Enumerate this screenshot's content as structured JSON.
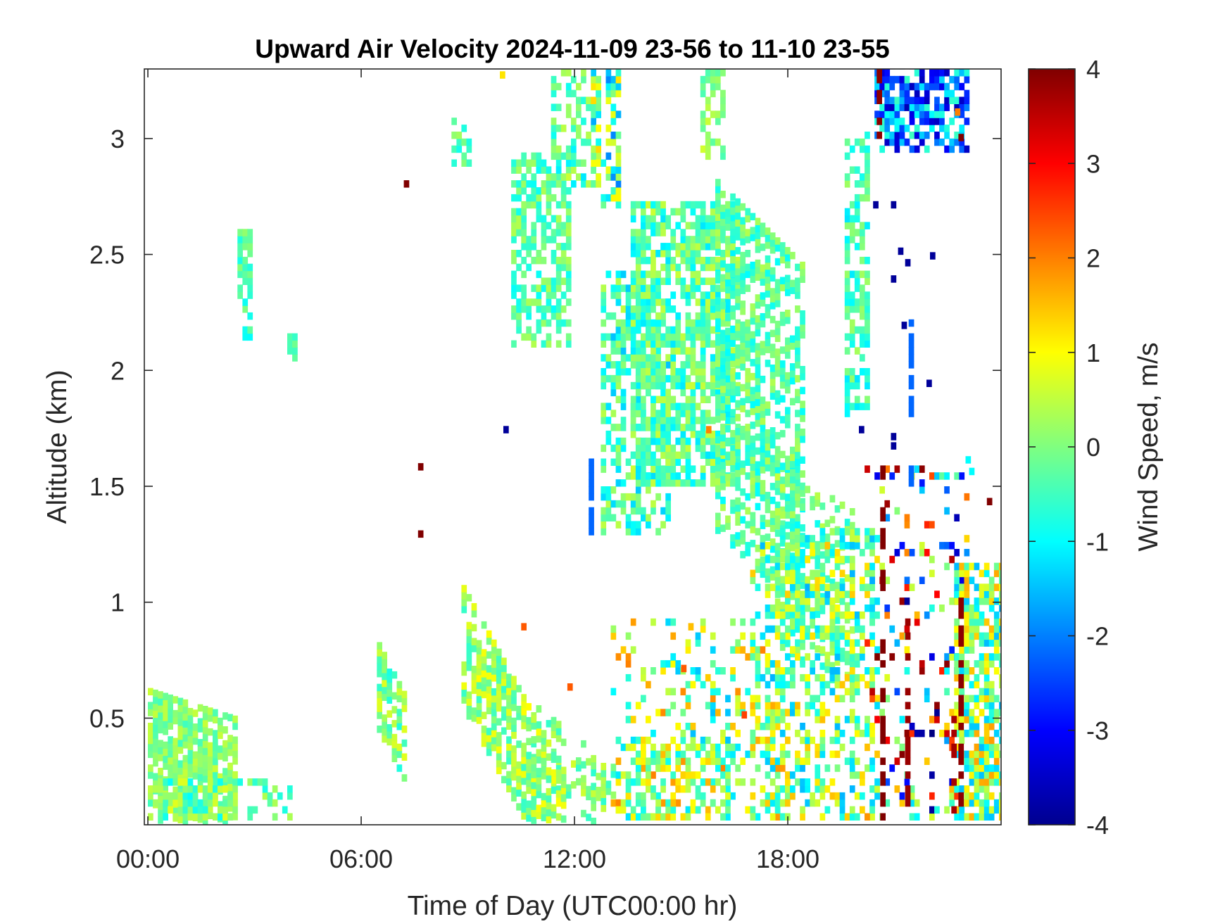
{
  "chart_data": {
    "type": "heatmap",
    "title": "Upward Air Velocity 2024-11-09 23-56 to 11-10 23-55",
    "xlabel": "Time of Day (UTC00:00 hr)",
    "ylabel": "Altitude (km)",
    "x_ticks": [
      {
        "value": 0,
        "label": "00:00"
      },
      {
        "value": 6,
        "label": "06:00"
      },
      {
        "value": 12,
        "label": "12:00"
      },
      {
        "value": 18,
        "label": "18:00"
      }
    ],
    "xlim": [
      -0.1,
      24
    ],
    "y_ticks": [
      {
        "value": 0.5,
        "label": "0.5"
      },
      {
        "value": 1,
        "label": "1"
      },
      {
        "value": 1.5,
        "label": "1.5"
      },
      {
        "value": 2,
        "label": "2"
      },
      {
        "value": 2.5,
        "label": "2.5"
      },
      {
        "value": 3,
        "label": "3"
      }
    ],
    "ylim": [
      0.04,
      3.3
    ],
    "colorbar": {
      "label": "Wind Speed, m/s",
      "colormap": "jet",
      "range": [
        -4,
        4
      ],
      "ticks": [
        "4",
        "3",
        "2",
        "1",
        "0",
        "-1",
        "-2",
        "-3",
        "-4"
      ]
    },
    "grid": false,
    "cell_size": {
      "time_hr": 0.14,
      "alt_km": 0.03
    },
    "regions": [
      {
        "t": [
          0.0,
          2.4
        ],
        "z": [
          0.05,
          0.6
        ],
        "v": [
          -0.5,
          0.6
        ],
        "density": 0.75,
        "slope": -0.05
      },
      {
        "t": [
          0.1,
          2.3
        ],
        "z": [
          0.05,
          0.22
        ],
        "v": [
          -1.0,
          0.9
        ],
        "density": 0.6,
        "slope": 0
      },
      {
        "t": [
          2.5,
          3.9
        ],
        "z": [
          0.05,
          0.2
        ],
        "v": [
          -1.2,
          0.5
        ],
        "density": 0.35,
        "slope": 0
      },
      {
        "t": [
          2.5,
          2.8
        ],
        "z": [
          2.3,
          2.58
        ],
        "v": [
          -0.9,
          0.2
        ],
        "density": 0.8,
        "slope": 0
      },
      {
        "t": [
          2.6,
          2.8
        ],
        "z": [
          2.1,
          2.3
        ],
        "v": [
          -1.0,
          0.0
        ],
        "density": 0.4,
        "slope": 0
      },
      {
        "t": [
          3.9,
          4.1
        ],
        "z": [
          2.05,
          2.13
        ],
        "v": [
          -0.6,
          0.0
        ],
        "density": 0.9,
        "slope": 0
      },
      {
        "t": [
          6.4,
          7.2
        ],
        "z": [
          0.45,
          0.8
        ],
        "v": [
          -0.8,
          0.8
        ],
        "density": 0.7,
        "slope": -0.3
      },
      {
        "t": [
          8.8,
          11.6
        ],
        "z": [
          0.55,
          1.05
        ],
        "v": [
          -0.6,
          1.0
        ],
        "density": 0.75,
        "slope": -0.28
      },
      {
        "t": [
          10.8,
          13.0
        ],
        "z": [
          0.25,
          0.55
        ],
        "v": [
          -0.7,
          0.7
        ],
        "density": 0.4,
        "slope": -0.12
      },
      {
        "t": [
          8.5,
          8.9
        ],
        "z": [
          2.85,
          3.05
        ],
        "v": [
          -0.9,
          0.3
        ],
        "density": 0.5,
        "slope": 0
      },
      {
        "t": [
          10.2,
          11.8
        ],
        "z": [
          2.1,
          2.9
        ],
        "v": [
          -1.0,
          0.4
        ],
        "density": 0.6,
        "slope": 0
      },
      {
        "t": [
          11.3,
          12.6
        ],
        "z": [
          2.8,
          3.28
        ],
        "v": [
          -1.2,
          0.6
        ],
        "density": 0.45,
        "slope": 0
      },
      {
        "t": [
          12.4,
          13.2
        ],
        "z": [
          2.7,
          3.3
        ],
        "v": [
          -2.0,
          1.3
        ],
        "density": 0.5,
        "slope": 0
      },
      {
        "t": [
          12.7,
          14.5
        ],
        "z": [
          1.3,
          2.4
        ],
        "v": [
          -1.5,
          0.5
        ],
        "density": 0.55,
        "slope": 0
      },
      {
        "t": [
          13.6,
          16.5
        ],
        "z": [
          1.5,
          2.7
        ],
        "v": [
          -1.2,
          0.6
        ],
        "density": 0.7,
        "slope": 0
      },
      {
        "t": [
          15.6,
          16.1
        ],
        "z": [
          2.9,
          3.3
        ],
        "v": [
          -0.5,
          0.7
        ],
        "density": 0.6,
        "slope": 0
      },
      {
        "t": [
          16.0,
          18.3
        ],
        "z": [
          1.3,
          2.8
        ],
        "v": [
          -1.0,
          0.4
        ],
        "density": 0.6,
        "slope": -0.15
      },
      {
        "t": [
          17.6,
          19.7
        ],
        "z": [
          0.8,
          1.6
        ],
        "v": [
          -0.9,
          0.6
        ],
        "density": 0.45,
        "slope": -0.1
      },
      {
        "t": [
          13.0,
          18.0
        ],
        "z": [
          0.05,
          0.9
        ],
        "v": [
          -1.5,
          2.0
        ],
        "density": 0.22,
        "slope": 0
      },
      {
        "t": [
          13.2,
          16.2
        ],
        "z": [
          0.05,
          0.35
        ],
        "v": [
          -1.0,
          1.6
        ],
        "density": 0.45,
        "slope": 0
      },
      {
        "t": [
          17.0,
          20.4
        ],
        "z": [
          0.05,
          1.3
        ],
        "v": [
          -1.6,
          1.5
        ],
        "density": 0.4,
        "slope": 0
      },
      {
        "t": [
          19.6,
          20.2
        ],
        "z": [
          1.8,
          3.0
        ],
        "v": [
          -1.2,
          0.3
        ],
        "density": 0.55,
        "slope": 0
      },
      {
        "t": [
          20.4,
          22.9
        ],
        "z": [
          2.95,
          3.3
        ],
        "v": [
          -3.6,
          -0.5
        ],
        "density": 0.65,
        "slope": 0
      },
      {
        "t": [
          20.2,
          22.9
        ],
        "z": [
          0.05,
          1.55
        ],
        "v": [
          -4.0,
          4.0
        ],
        "density": 0.16,
        "slope": 0
      },
      {
        "t": [
          22.7,
          24.0
        ],
        "z": [
          0.05,
          1.15
        ],
        "v": [
          -1.6,
          1.8
        ],
        "density": 0.7,
        "slope": 0
      }
    ],
    "columns": [
      {
        "t": 20.6,
        "z": [
          0.05,
          1.6
        ],
        "v": 4.0
      },
      {
        "t": 21.3,
        "z": [
          0.05,
          0.9
        ],
        "v": 3.8
      },
      {
        "t": 22.8,
        "z": [
          0.05,
          1.05
        ],
        "v": 3.9
      },
      {
        "t": 22.6,
        "z": [
          0.05,
          0.5
        ],
        "v": 3.7
      },
      {
        "t": 20.5,
        "z": [
          3.0,
          3.3
        ],
        "v": 3.9
      },
      {
        "t": 21.4,
        "z": [
          1.5,
          2.2
        ],
        "v": -2.2
      },
      {
        "t": 12.4,
        "z": [
          1.3,
          1.6
        ],
        "v": -2.2
      }
    ],
    "points": [
      {
        "t": 7.2,
        "z": 2.79,
        "v": 4.0
      },
      {
        "t": 7.6,
        "z": 1.57,
        "v": 4.0
      },
      {
        "t": 7.6,
        "z": 1.28,
        "v": 4.0
      },
      {
        "t": 10.0,
        "z": 1.73,
        "v": -3.8
      },
      {
        "t": 9.9,
        "z": 3.26,
        "v": 1.2
      },
      {
        "t": 20.4,
        "z": 2.7,
        "v": -3.8
      },
      {
        "t": 20.9,
        "z": 2.7,
        "v": -3.8
      },
      {
        "t": 21.1,
        "z": 2.5,
        "v": -3.8
      },
      {
        "t": 20.9,
        "z": 2.38,
        "v": -3.8
      },
      {
        "t": 21.3,
        "z": 2.45,
        "v": -3.8
      },
      {
        "t": 22.0,
        "z": 2.48,
        "v": -3.8
      },
      {
        "t": 21.9,
        "z": 1.93,
        "v": -3.8
      },
      {
        "t": 21.2,
        "z": 2.18,
        "v": -3.8
      },
      {
        "t": 20.0,
        "z": 1.73,
        "v": -3.8
      },
      {
        "t": 20.9,
        "z": 1.7,
        "v": -3.8
      },
      {
        "t": 20.9,
        "z": 1.66,
        "v": -3.8
      },
      {
        "t": 23.6,
        "z": 1.42,
        "v": 4.0
      },
      {
        "t": 22.8,
        "z": 2.99,
        "v": 4.0
      },
      {
        "t": 22.7,
        "z": 3.1,
        "v": 2.0
      },
      {
        "t": 23.0,
        "z": 1.6,
        "v": -1.0
      },
      {
        "t": 23.1,
        "z": 1.55,
        "v": -1.0
      },
      {
        "t": 15.2,
        "z": 0.88,
        "v": 1.5
      },
      {
        "t": 15.0,
        "z": 0.7,
        "v": 2.3
      },
      {
        "t": 10.5,
        "z": 0.88,
        "v": 2.3
      },
      {
        "t": 11.8,
        "z": 0.62,
        "v": 2.3
      },
      {
        "t": 16.7,
        "z": 0.5,
        "v": 2.5
      },
      {
        "t": 15.7,
        "z": 1.73,
        "v": 2.0
      }
    ]
  }
}
